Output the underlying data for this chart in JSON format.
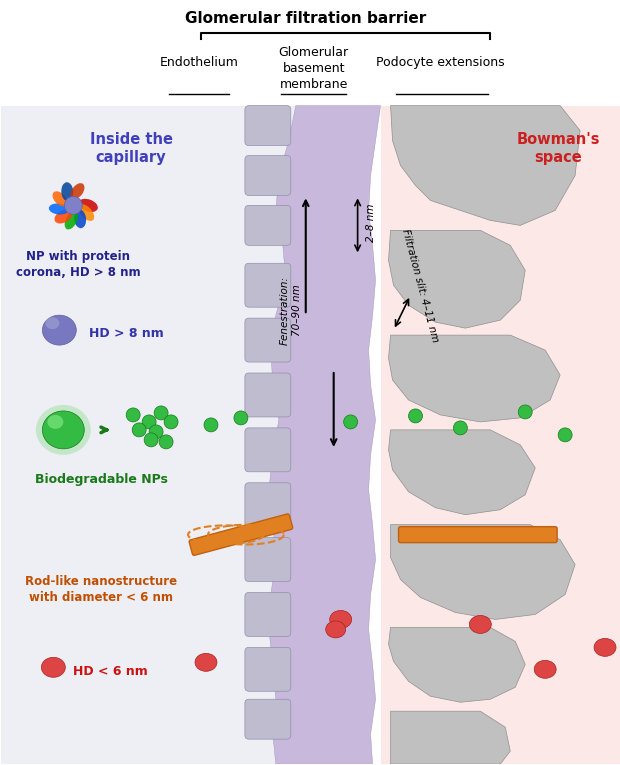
{
  "title": "Glomerular filtration barrier",
  "header_labels": [
    "Endothelium",
    "Glomerular\nbasement\nmembrane",
    "Podocyte extensions"
  ],
  "left_label": "Inside the\ncapillary",
  "right_label": "Bowman's\nspace",
  "bg_left_color": "#eeeef5",
  "bg_right_color": "#fde8e8",
  "gbm_color": "#c8b8dc",
  "gbm_edge": "#a090c0",
  "endothelium_color": "#c0bcd0",
  "endothelium_edge": "#9090aa",
  "podocyte_color": "#c0c0c0",
  "podocyte_edge": "#909090",
  "green_color": "#33bb44",
  "green_dark": "#1a7a1a",
  "green_glow": "#88dd88",
  "purple_color": "#7878c0",
  "purple_dark": "#5050a0",
  "red_color": "#dd4444",
  "red_dark": "#aa2222",
  "orange_color": "#e08020",
  "orange_dark": "#c06010",
  "np_protein_label": "NP with protein\ncorona, HD > 8 nm",
  "hd8_label": "HD > 8 nm",
  "biodeg_label": "Biodegradable NPs",
  "rod_label": "Rod-like nanostructure\nwith diameter < 6 nm",
  "hd6_label": "HD < 6 nm",
  "fenestration_label": "Fenestration:\n70–90 nm",
  "gbm_width_label": "2–8 nm",
  "filtration_label": "Filtration slit: 4–11 nm"
}
